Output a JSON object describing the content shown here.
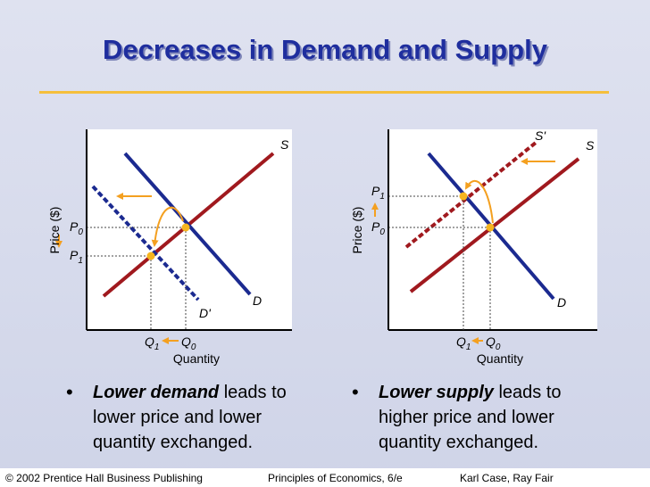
{
  "title": "Decreases in Demand and Supply",
  "colors": {
    "title": "#1f2e9e",
    "supply": "#a0191e",
    "demand": "#1b2a90",
    "arrow": "#f4a020",
    "point": "#f6b51e",
    "rule": "#f5bf3c"
  },
  "left_diagram": {
    "ylabel": "Price ($)",
    "xlabel": "Quantity",
    "supply_label": "S",
    "demand_label": "D",
    "new_demand_label": "D'",
    "p0_label": "P",
    "p0_sub": "0",
    "p1_label": "P",
    "p1_sub": "1",
    "q1_label": "Q",
    "q1_sub": "1",
    "q0_label": "Q",
    "q0_sub": "0"
  },
  "right_diagram": {
    "ylabel": "Price ($)",
    "xlabel": "Quantity",
    "supply_label": "S",
    "new_supply_label": "S'",
    "demand_label": "D",
    "p1_label": "P",
    "p1_sub": "1",
    "p0_label": "P",
    "p0_sub": "0",
    "q1_label": "Q",
    "q1_sub": "1",
    "q0_label": "Q",
    "q0_sub": "0"
  },
  "bullets": [
    {
      "bold": "Lower demand",
      "rest_line1": " leads to",
      "line2": "lower price and lower",
      "line3": "quantity exchanged."
    },
    {
      "bold": "Lower supply",
      "rest_line1": " leads to",
      "line2": "higher price and lower",
      "line3": "quantity exchanged."
    }
  ],
  "footer": {
    "left": "© 2002 Prentice Hall Business Publishing",
    "center": "Principles of Economics, 6/e",
    "right": "Karl Case, Ray Fair"
  }
}
